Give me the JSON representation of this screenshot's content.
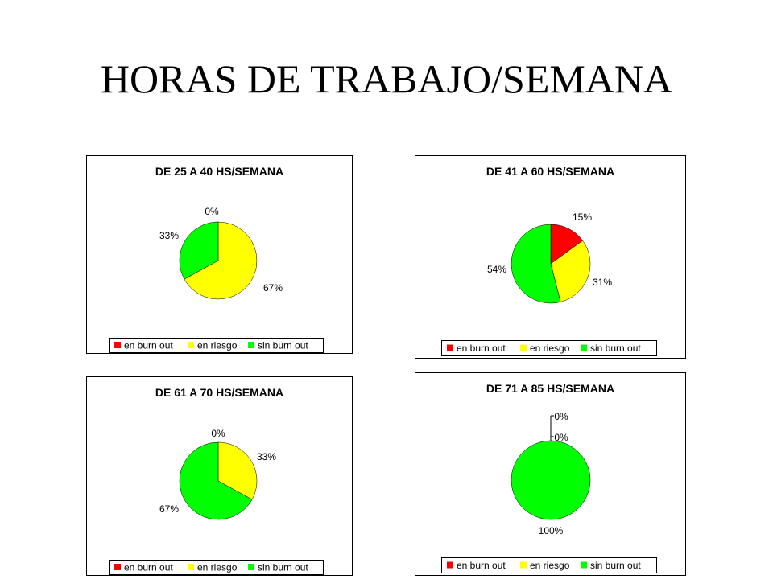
{
  "slide": {
    "title": "HORAS DE TRABAJO/SEMANA"
  },
  "legend_labels": [
    "en burn out",
    "en riesgo",
    "sin burn out"
  ],
  "colors": {
    "en_burn_out": "#ff0000",
    "en_riesgo": "#ffff00",
    "sin_burn_out": "#00ff00"
  },
  "chart_data": [
    {
      "type": "pie",
      "title": "DE 25 A 40 HS/SEMANA",
      "categories": [
        "en burn out",
        "en riesgo",
        "sin burn out"
      ],
      "values": [
        0,
        67,
        33
      ],
      "data_labels": [
        "0%",
        "67%",
        "33%"
      ],
      "legend": "bottom"
    },
    {
      "type": "pie",
      "title": "DE 41 A 60 HS/SEMANA",
      "categories": [
        "en burn out",
        "en riesgo",
        "sin burn out"
      ],
      "values": [
        15,
        31,
        54
      ],
      "data_labels": [
        "15%",
        "31%",
        "54%"
      ],
      "legend": "bottom"
    },
    {
      "type": "pie",
      "title": "DE 61 A 70 HS/SEMANA",
      "categories": [
        "en burn out",
        "en riesgo",
        "sin burn out"
      ],
      "values": [
        0,
        33,
        67
      ],
      "data_labels": [
        "0%",
        "33%",
        "67%"
      ],
      "legend": "bottom"
    },
    {
      "type": "pie",
      "title": "DE 71 A 85 HS/SEMANA",
      "categories": [
        "en burn out",
        "en riesgo",
        "sin burn out"
      ],
      "values": [
        0,
        0,
        100
      ],
      "data_labels": [
        "0%",
        "0%",
        "100%"
      ],
      "legend": "bottom"
    }
  ]
}
